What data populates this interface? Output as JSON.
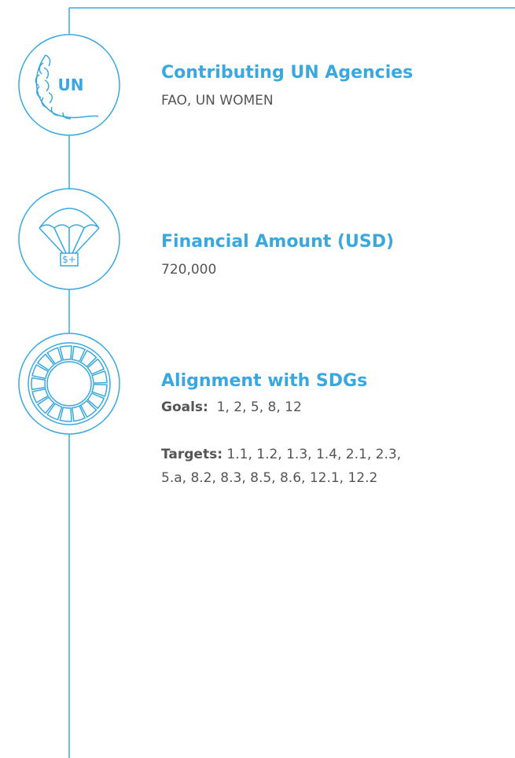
{
  "sections": [
    {
      "title": "Contributing UN Agencies",
      "text": "FAO, UN WOMEN",
      "icon_text": "UN"
    },
    {
      "title": "Financial Amount (USD)",
      "text": "720,000",
      "icon_text": "$+"
    },
    {
      "title": "Alignment with SDGs",
      "goals_label": "Goals:",
      "goals": "1, 2, 5, 8, 12",
      "targets_label": "Targets:",
      "targets_lines": [
        "1.1, 1.2, 1.3, 1.4, 2.1, 2.3,",
        "5.a, 8.2, 8.3, 8.5, 8.6, 12.1, 12.2"
      ]
    }
  ]
}
